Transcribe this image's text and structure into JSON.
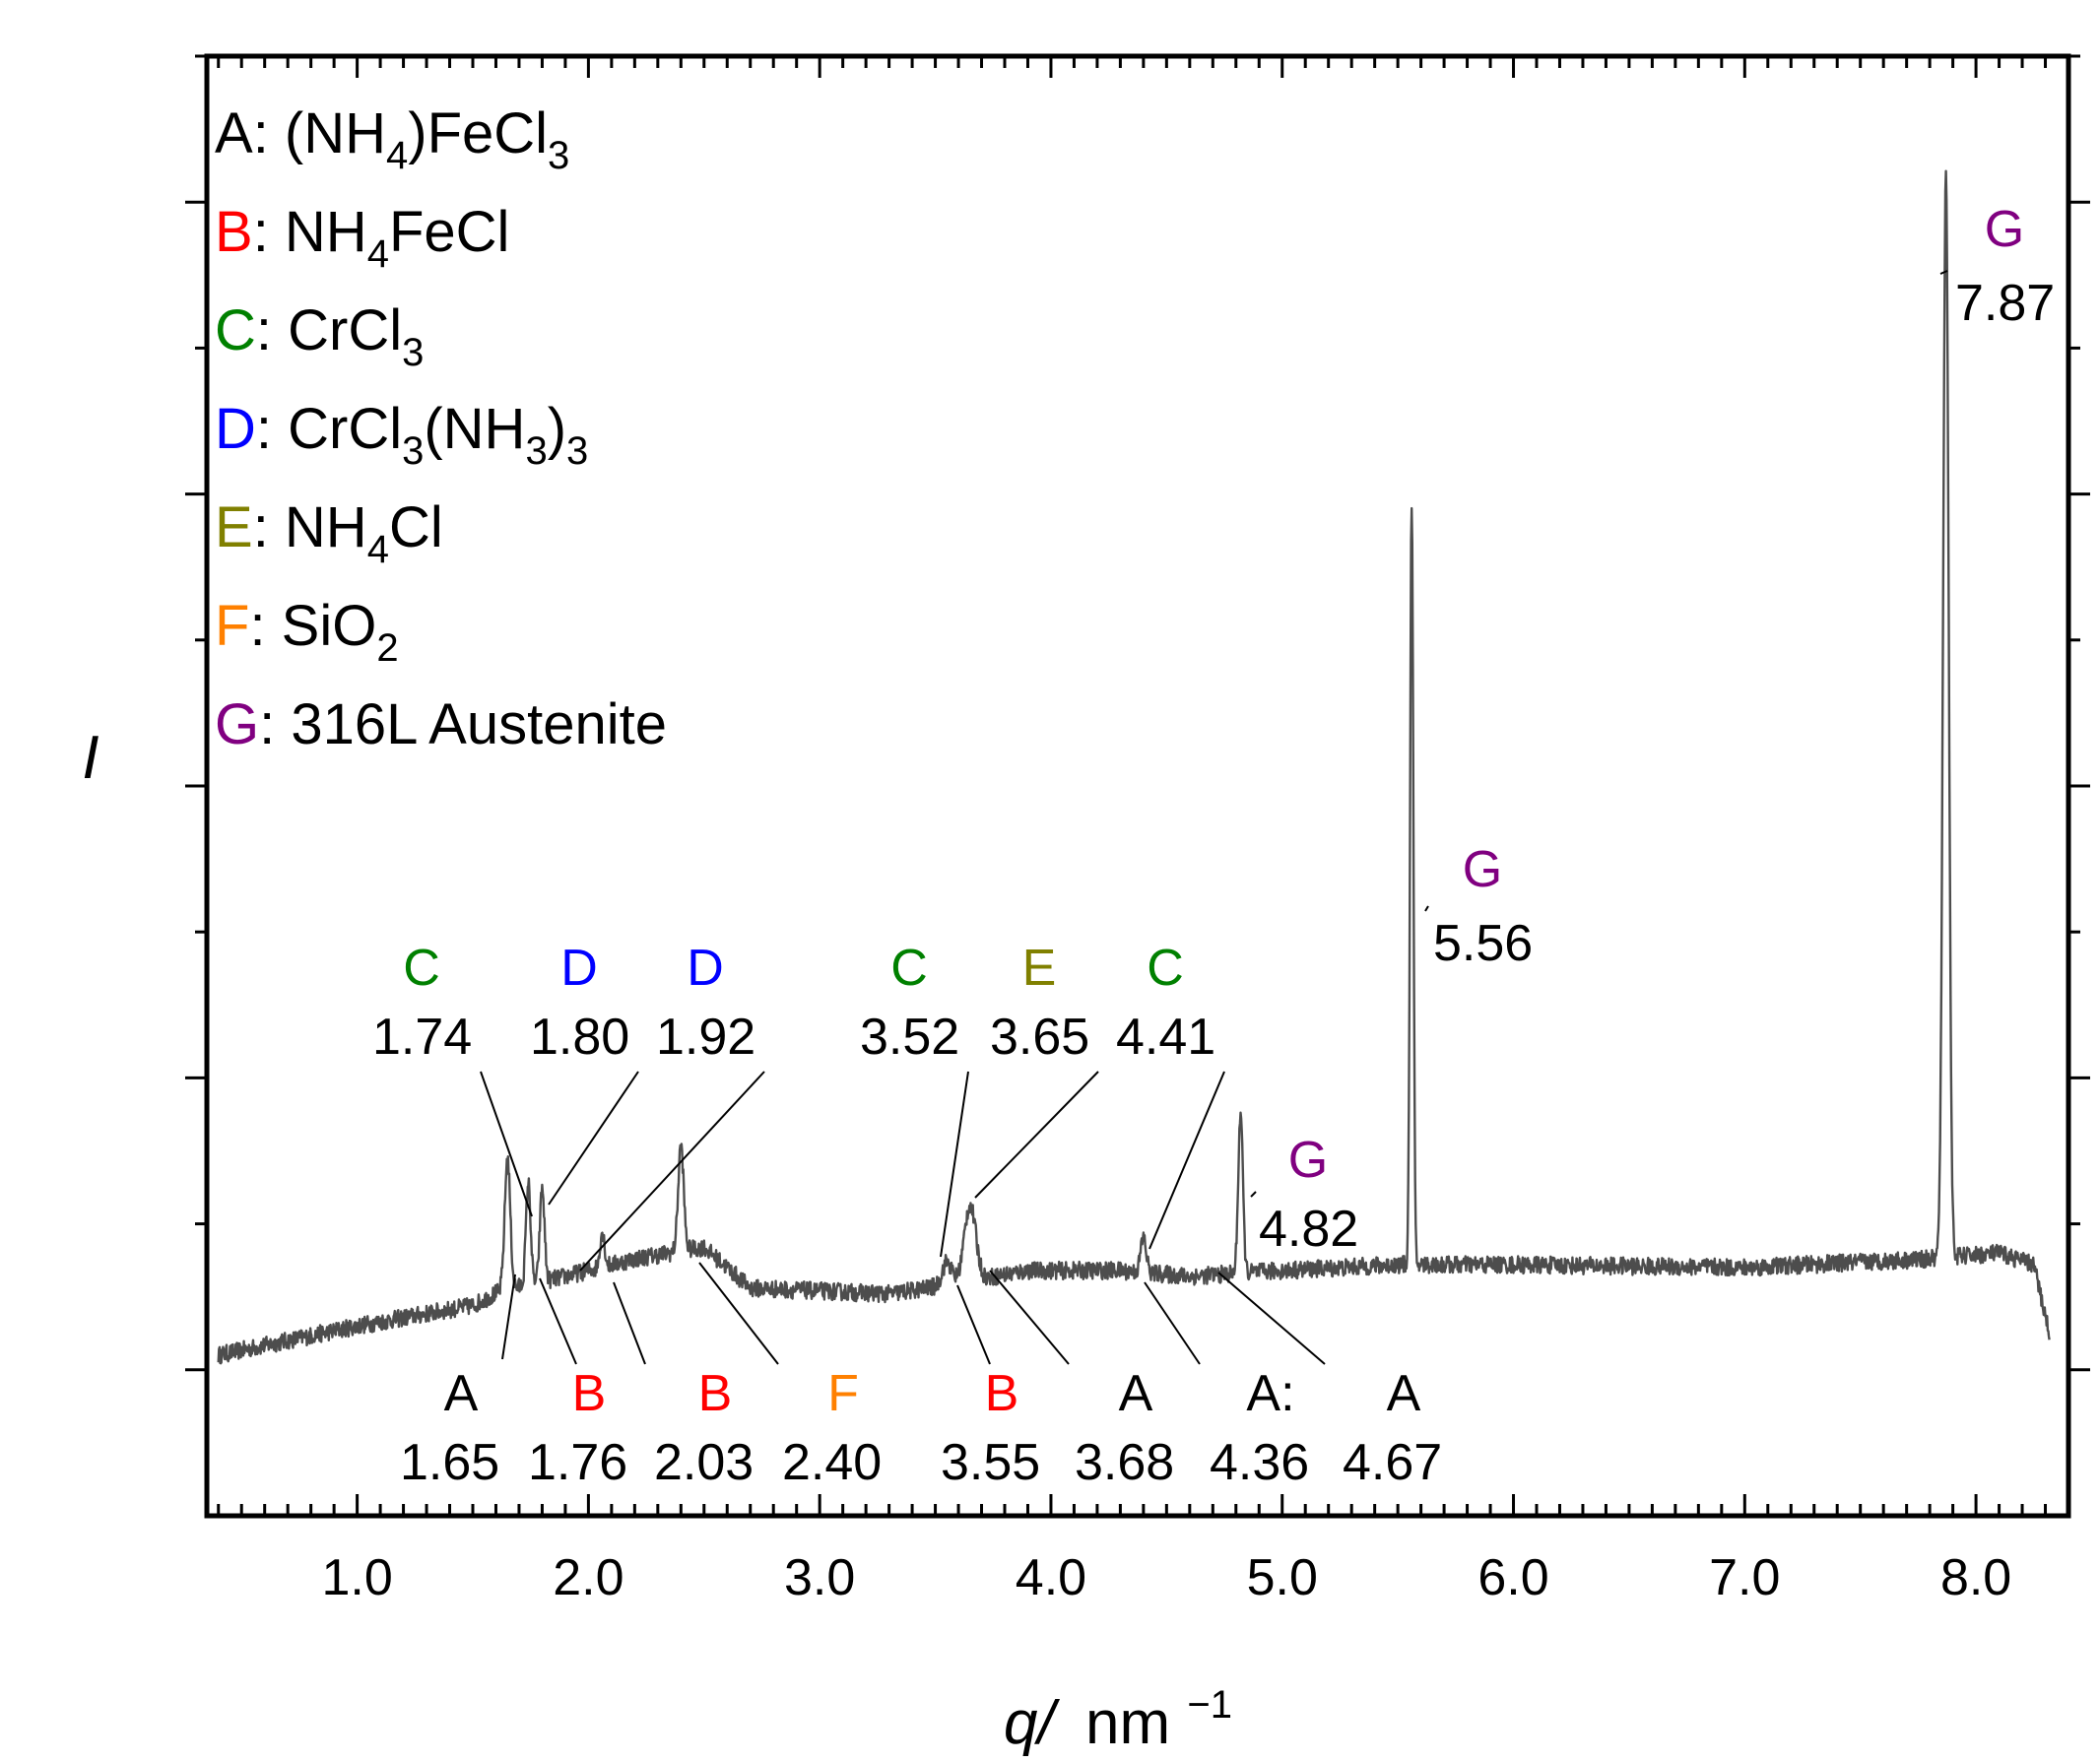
{
  "chart_data": {
    "type": "line",
    "title": "",
    "xlabel": "nm",
    "xlabel_var": "q/",
    "xlabel_sup": "−1",
    "ylabel": "I",
    "xlim": [
      0.35,
      8.4
    ],
    "ylim": [
      -0.5,
      4.5
    ],
    "x_ticks": [
      1.0,
      2.0,
      3.0,
      4.0,
      5.0,
      6.0,
      7.0,
      8.0
    ],
    "x_tick_labels": [
      "1.0",
      "2.0",
      "3.0",
      "4.0",
      "5.0",
      "6.0",
      "7.0",
      "8.0"
    ],
    "grid": false,
    "legend_position": "top-left",
    "colors": {
      "A": "#000000",
      "B": "#ff0000",
      "C": "#008000",
      "D": "#0000ff",
      "E": "#808000",
      "F": "#ff8000",
      "G": "#800080",
      "trace": "#4d4d4d"
    },
    "legend": [
      {
        "key": "A",
        "sep": ":",
        "parts": [
          {
            "t": "(NH"
          },
          {
            "sub": "4"
          },
          {
            "t": ")FeCl"
          },
          {
            "sub": "3"
          }
        ]
      },
      {
        "key": "B",
        "sep": ":",
        "parts": [
          {
            "t": "NH"
          },
          {
            "sub": "4"
          },
          {
            "t": "FeCl"
          }
        ]
      },
      {
        "key": "C",
        "sep": ":",
        "parts": [
          {
            "t": "CrCl"
          },
          {
            "sub": "3"
          }
        ]
      },
      {
        "key": "D",
        "sep": ":",
        "parts": [
          {
            "t": "CrCl"
          },
          {
            "sub": "3"
          },
          {
            "t": "(NH"
          },
          {
            "sub": "3"
          },
          {
            "t": ")"
          },
          {
            "sub": "3"
          }
        ]
      },
      {
        "key": "E",
        "sep": ":",
        "parts": [
          {
            "t": "NH"
          },
          {
            "sub": "4"
          },
          {
            "t": "Cl"
          }
        ]
      },
      {
        "key": "F",
        "sep": ":",
        "parts": [
          {
            "t": "SiO"
          },
          {
            "sub": "2"
          }
        ]
      },
      {
        "key": "G",
        "sep": ":",
        "parts": [
          {
            "t": "316L Austenite"
          }
        ]
      }
    ],
    "baseline": {
      "x": [
        0.4,
        1.0,
        1.5,
        1.62,
        1.9,
        2.2,
        2.5,
        2.7,
        3.0,
        3.3,
        3.55,
        3.9,
        4.3,
        4.6,
        5.0,
        5.5,
        6.0,
        7.0,
        7.8,
        8.1,
        8.25,
        8.29,
        8.32
      ],
      "y": [
        0.05,
        0.15,
        0.22,
        0.27,
        0.32,
        0.38,
        0.42,
        0.28,
        0.27,
        0.26,
        0.29,
        0.34,
        0.34,
        0.32,
        0.34,
        0.36,
        0.36,
        0.35,
        0.38,
        0.4,
        0.36,
        0.22,
        0.12
      ]
    },
    "peaks": [
      {
        "pos": 1.65,
        "height": 0.45,
        "width": 0.012
      },
      {
        "pos": 1.74,
        "height": 0.35,
        "width": 0.01
      },
      {
        "pos": 1.8,
        "height": 0.32,
        "width": 0.01
      },
      {
        "pos": 2.06,
        "height": 0.12,
        "width": 0.01
      },
      {
        "pos": 2.4,
        "height": 0.36,
        "width": 0.012
      },
      {
        "pos": 3.55,
        "height": 0.08,
        "width": 0.02
      },
      {
        "pos": 3.65,
        "height": 0.26,
        "width": 0.025
      },
      {
        "pos": 4.4,
        "height": 0.12,
        "width": 0.012
      },
      {
        "pos": 4.82,
        "height": 0.55,
        "width": 0.01
      },
      {
        "pos": 5.56,
        "height": 2.62,
        "width": 0.007
      },
      {
        "pos": 7.87,
        "height": 3.72,
        "width": 0.012
      }
    ],
    "annotations_above": [
      {
        "phase": "C",
        "value": "1.74",
        "x": 1.74
      },
      {
        "phase": "D",
        "value": "1.80",
        "x": 1.8
      },
      {
        "phase": "D",
        "value": "1.92",
        "x": 1.92
      },
      {
        "phase": "C",
        "value": "3.52",
        "x": 3.52
      },
      {
        "phase": "E",
        "value": "3.65",
        "x": 3.65
      },
      {
        "phase": "C",
        "value": "4.41",
        "x": 4.41
      },
      {
        "phase": "G",
        "value": "4.82",
        "x": 4.82
      },
      {
        "phase": "G",
        "value": "5.56",
        "x": 5.56
      },
      {
        "phase": "G",
        "value": "7.87",
        "x": 7.87
      }
    ],
    "annotations_below": [
      {
        "phase": "A",
        "label": "A",
        "value": "1.65",
        "x": 1.65
      },
      {
        "phase": "B",
        "label": "B",
        "value": "1.76",
        "x": 1.76
      },
      {
        "phase": "B",
        "label": "B",
        "value": "2.03",
        "x": 2.03
      },
      {
        "phase": "F",
        "label": "F",
        "value": "2.40",
        "x": 2.4
      },
      {
        "phase": "B",
        "label": "B",
        "value": "3.55",
        "x": 3.55
      },
      {
        "phase": "A",
        "label": "A",
        "value": "3.68",
        "x": 3.68
      },
      {
        "phase": "A",
        "label": "A:",
        "value": "4.36",
        "x": 4.36
      },
      {
        "phase": "A",
        "label": "A",
        "value": "4.67",
        "x": 4.67
      }
    ]
  }
}
